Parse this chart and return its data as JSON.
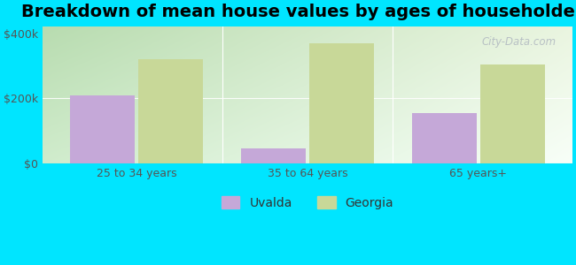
{
  "title": "Breakdown of mean house values by ages of householders",
  "categories": [
    "25 to 34 years",
    "35 to 64 years",
    "65 years+"
  ],
  "uvalda_values": [
    210000,
    45000,
    155000
  ],
  "georgia_values": [
    320000,
    370000,
    305000
  ],
  "ylim": [
    0,
    420000
  ],
  "ytick_vals": [
    0,
    200000,
    400000
  ],
  "ytick_labels": [
    "$0",
    "$200k",
    "$400k"
  ],
  "bar_width": 0.38,
  "uvalda_color": "#c5a8d8",
  "georgia_color": "#c8d898",
  "legend_uvalda": "Uvalda",
  "legend_georgia": "Georgia",
  "background_color": "#00e5ff",
  "grad_top_left": "#b8dcb0",
  "grad_top_right": "#e8f5e8",
  "grad_bottom_left": "#d8ecd0",
  "grad_bottom_right": "#f5fff5",
  "title_fontsize": 14,
  "tick_fontsize": 9,
  "legend_fontsize": 10,
  "watermark": "City-Data.com"
}
